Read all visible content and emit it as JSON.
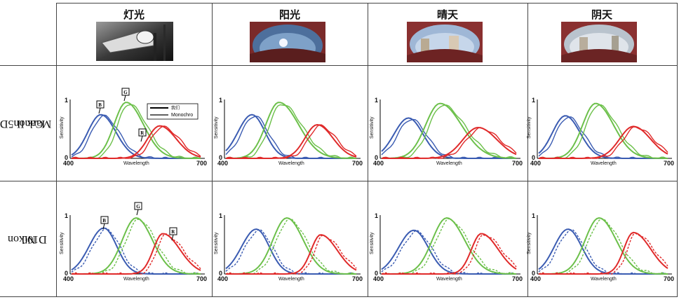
{
  "columns": [
    {
      "label": "灯光",
      "photo": "street-lamp"
    },
    {
      "label": "阳光",
      "photo": "fisheye-sunny"
    },
    {
      "label": "晴天",
      "photo": "fisheye-clear"
    },
    {
      "label": "阴天",
      "photo": "fisheye-overcast"
    }
  ],
  "rows": [
    {
      "label_line1": "Canon5D",
      "label_line2": "Mark II"
    },
    {
      "label_line1": "Nikon",
      "label_line2": "D100"
    }
  ],
  "axis": {
    "x_min_label": "400",
    "x_max_label": "700",
    "xlabel": "Wavelength",
    "ylabel": "Sensitivity",
    "y_top_label": "1",
    "y_bottom_label": "0"
  },
  "legend": {
    "solid_label": "我们",
    "dashed_label": "Monochro"
  },
  "callouts": {
    "b": "B",
    "g": "G",
    "r": "R"
  },
  "colors": {
    "blue": "#3b5cb2",
    "green": "#6cc04a",
    "red": "#e02a2a"
  },
  "chart_data": [
    {
      "type": "line",
      "row": "Canon5D Mark II",
      "column": "灯光",
      "x_range": [
        400,
        700
      ],
      "ylim": [
        0,
        1
      ],
      "series": [
        {
          "color": "blue",
          "peaks": [
            0.78,
            0.75
          ],
          "peak_x": [
            465,
            470
          ]
        },
        {
          "color": "green",
          "peaks": [
            1.0,
            0.97
          ],
          "peak_x": [
            525,
            530
          ]
        },
        {
          "color": "red",
          "peaks": [
            0.62,
            0.55
          ],
          "peak_x": [
            600,
            610
          ]
        }
      ]
    },
    {
      "type": "line",
      "row": "Canon5D Mark II",
      "column": "阳光",
      "x_range": [
        400,
        700
      ],
      "ylim": [
        0,
        1
      ]
    },
    {
      "type": "line",
      "row": "Canon5D Mark II",
      "column": "晴天",
      "x_range": [
        400,
        700
      ],
      "ylim": [
        0,
        1
      ]
    },
    {
      "type": "line",
      "row": "Canon5D Mark II",
      "column": "阴天",
      "x_range": [
        400,
        700
      ],
      "ylim": [
        0,
        1
      ]
    },
    {
      "type": "line",
      "row": "Nikon D100",
      "column": "灯光",
      "x_range": [
        400,
        700
      ],
      "ylim": [
        0,
        1
      ]
    },
    {
      "type": "line",
      "row": "Nikon D100",
      "column": "阳光",
      "x_range": [
        400,
        700
      ],
      "ylim": [
        0,
        1
      ]
    },
    {
      "type": "line",
      "row": "Nikon D100",
      "column": "晴天",
      "x_range": [
        400,
        700
      ],
      "ylim": [
        0,
        1
      ]
    },
    {
      "type": "line",
      "row": "Nikon D100",
      "column": "阴天",
      "x_range": [
        400,
        700
      ],
      "ylim": [
        0,
        1
      ]
    }
  ]
}
